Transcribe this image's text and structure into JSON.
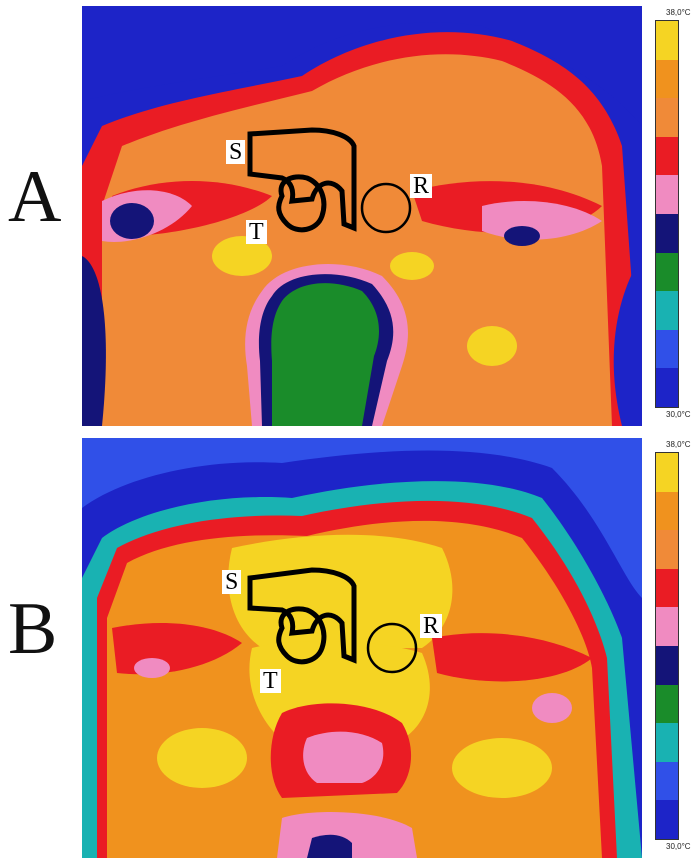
{
  "panels": [
    {
      "letter": "A",
      "scale": {
        "max": "38,0°C",
        "min": "30,0°C"
      },
      "roi_labels": {
        "s": "S",
        "t": "T",
        "r": "R"
      }
    },
    {
      "letter": "B",
      "scale": {
        "max": "38,0°C",
        "min": "30,0°C"
      },
      "roi_labels": {
        "s": "S",
        "t": "T",
        "r": "R"
      }
    }
  ],
  "palette": [
    "#f5d423",
    "#f0921e",
    "#f08a38",
    "#ea1c24",
    "#f08bc1",
    "#141478",
    "#1a8c2a",
    "#19b2b2",
    "#3050e8",
    "#1d24c8"
  ]
}
